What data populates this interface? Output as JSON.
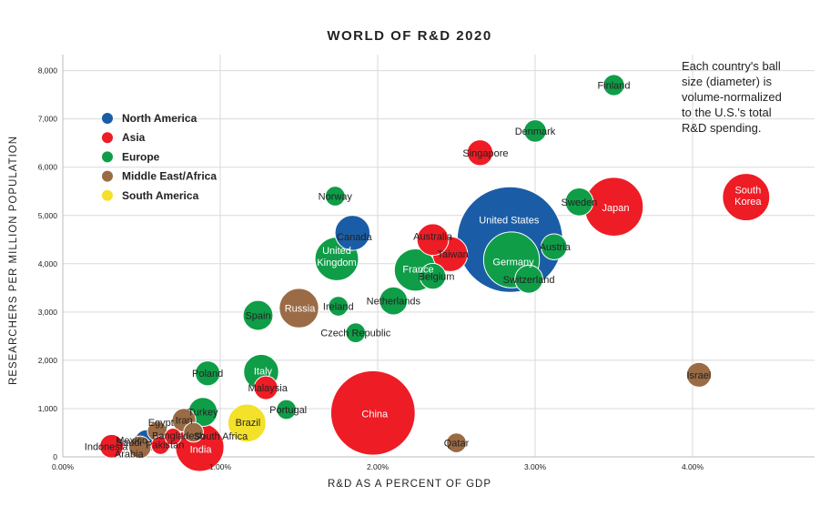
{
  "chart_data": {
    "type": "scatter",
    "title": "WORLD OF R&D 2020",
    "xlabel": "R&D AS A PERCENT OF GDP",
    "ylabel": "RESEARCHERS PER MILLION POPULATION",
    "xlim": [
      0,
      4.8
    ],
    "ylim": [
      0,
      8400
    ],
    "x_ticks": [
      {
        "value": 0,
        "label": "0.00%"
      },
      {
        "value": 1,
        "label": "1.00%"
      },
      {
        "value": 2,
        "label": "2.00%"
      },
      {
        "value": 3,
        "label": "3.00%"
      },
      {
        "value": 4,
        "label": "4.00%"
      }
    ],
    "y_ticks": [
      {
        "value": 0,
        "label": "0"
      },
      {
        "value": 1000,
        "label": "1,000"
      },
      {
        "value": 2000,
        "label": "2,000"
      },
      {
        "value": 3000,
        "label": "3,000"
      },
      {
        "value": 4000,
        "label": "4,000"
      },
      {
        "value": 5000,
        "label": "5,000"
      },
      {
        "value": 6000,
        "label": "6,000"
      },
      {
        "value": 7000,
        "label": "7,000"
      },
      {
        "value": 8000,
        "label": "8,000"
      }
    ],
    "grid": true,
    "legend": [
      {
        "name": "North America",
        "color": "#1a5da6"
      },
      {
        "name": "Asia",
        "color": "#ee1c25"
      },
      {
        "name": "Europe",
        "color": "#0f9d48"
      },
      {
        "name": "Middle East/Africa",
        "color": "#9a6b45"
      },
      {
        "name": "South America",
        "color": "#f3e12a"
      }
    ],
    "legend_position": "top-left",
    "annotation_lines": [
      "Each country's ball",
      "size (diameter) is",
      "volume-normalized",
      "to the U.S.'s total",
      "R&D spending."
    ],
    "size_encoding": "relative R&D spending volume (U.S. = 100)",
    "points": [
      {
        "name": "United States",
        "region": "North America",
        "x": 2.84,
        "y": 4500,
        "size": 100
      },
      {
        "name": "Canada",
        "region": "North America",
        "x": 1.84,
        "y": 4640,
        "size": 11
      },
      {
        "name": "Mexico",
        "region": "North America",
        "x": 0.53,
        "y": 330,
        "size": 4.5
      },
      {
        "name": "China",
        "region": "Asia",
        "x": 1.97,
        "y": 910,
        "size": 64
      },
      {
        "name": "Japan",
        "region": "Asia",
        "x": 3.5,
        "y": 5180,
        "size": 31
      },
      {
        "name": "South Korea",
        "region": "Asia",
        "x": 4.34,
        "y": 5380,
        "size": 20
      },
      {
        "name": "Singapore",
        "region": "Asia",
        "x": 2.65,
        "y": 6300,
        "size": 6
      },
      {
        "name": "Australia",
        "region": "Asia",
        "x": 2.35,
        "y": 4500,
        "size": 9
      },
      {
        "name": "Taiwan",
        "region": "Asia",
        "x": 2.46,
        "y": 4200,
        "size": 11
      },
      {
        "name": "India",
        "region": "Asia",
        "x": 0.87,
        "y": 200,
        "size": 21
      },
      {
        "name": "Malaysia",
        "region": "Asia",
        "x": 1.29,
        "y": 1430,
        "size": 5
      },
      {
        "name": "Indonesia",
        "region": "Asia",
        "x": 0.31,
        "y": 220,
        "size": 5
      },
      {
        "name": "Bangladesh",
        "region": "Asia",
        "x": 0.7,
        "y": 420,
        "size": 2.5
      },
      {
        "name": "Pakistan",
        "region": "Asia",
        "x": 0.62,
        "y": 240,
        "size": 3
      },
      {
        "name": "Germany",
        "region": "Europe",
        "x": 2.85,
        "y": 4080,
        "size": 28
      },
      {
        "name": "France",
        "region": "Europe",
        "x": 2.24,
        "y": 3870,
        "size": 16
      },
      {
        "name": "United Kingdom",
        "region": "Europe",
        "x": 1.74,
        "y": 4100,
        "size": 17
      },
      {
        "name": "Finland",
        "region": "Europe",
        "x": 3.5,
        "y": 7700,
        "size": 4
      },
      {
        "name": "Denmark",
        "region": "Europe",
        "x": 3.0,
        "y": 6750,
        "size": 4.5
      },
      {
        "name": "Sweden",
        "region": "Europe",
        "x": 3.28,
        "y": 5280,
        "size": 7
      },
      {
        "name": "Austria",
        "region": "Europe",
        "x": 3.12,
        "y": 4350,
        "size": 6
      },
      {
        "name": "Switzerland",
        "region": "Europe",
        "x": 2.96,
        "y": 3680,
        "size": 7
      },
      {
        "name": "Belgium",
        "region": "Europe",
        "x": 2.35,
        "y": 3740,
        "size": 6
      },
      {
        "name": "Netherlands",
        "region": "Europe",
        "x": 2.1,
        "y": 3230,
        "size": 7
      },
      {
        "name": "Norway",
        "region": "Europe",
        "x": 1.73,
        "y": 5400,
        "size": 3.5
      },
      {
        "name": "Ireland",
        "region": "Europe",
        "x": 1.75,
        "y": 3120,
        "size": 3.5
      },
      {
        "name": "Czech Republic",
        "region": "Europe",
        "x": 1.86,
        "y": 2570,
        "size": 3.5
      },
      {
        "name": "Spain",
        "region": "Europe",
        "x": 1.24,
        "y": 2930,
        "size": 8
      },
      {
        "name": "Italy",
        "region": "Europe",
        "x": 1.26,
        "y": 1760,
        "size": 11
      },
      {
        "name": "Poland",
        "region": "Europe",
        "x": 0.92,
        "y": 1730,
        "size": 5.5
      },
      {
        "name": "Portugal",
        "region": "Europe",
        "x": 1.42,
        "y": 980,
        "size": 3.5
      },
      {
        "name": "Turkey",
        "region": "Europe",
        "x": 0.89,
        "y": 930,
        "size": 7.5
      },
      {
        "name": "Russia",
        "region": "Middle East/Africa",
        "x": 1.5,
        "y": 3080,
        "size": 14
      },
      {
        "name": "Israel",
        "region": "Middle East/Africa",
        "x": 4.04,
        "y": 1700,
        "size": 5.5
      },
      {
        "name": "Qatar",
        "region": "Middle East/Africa",
        "x": 2.5,
        "y": 290,
        "size": 3.5
      },
      {
        "name": "Iran",
        "region": "Middle East/Africa",
        "x": 0.77,
        "y": 760,
        "size": 5
      },
      {
        "name": "Egypt",
        "region": "Middle East/Africa",
        "x": 0.6,
        "y": 530,
        "size": 3.5
      },
      {
        "name": "Saudi Arabia",
        "region": "Middle East/Africa",
        "x": 0.49,
        "y": 200,
        "size": 4.5
      },
      {
        "name": "South Africa",
        "region": "Middle East/Africa",
        "x": 0.83,
        "y": 510,
        "size": 3.5
      },
      {
        "name": "Brazil",
        "region": "South America",
        "x": 1.17,
        "y": 700,
        "size": 13
      }
    ]
  }
}
